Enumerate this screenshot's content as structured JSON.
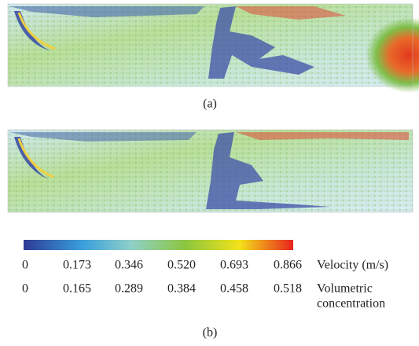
{
  "figure": {
    "panels": [
      {
        "caption": "(a)"
      },
      {
        "caption": "(b)"
      }
    ],
    "colorbar": {
      "rows": [
        {
          "ticks": [
            "0",
            "0.173",
            "0.346",
            "0.520",
            "0.693",
            "0.866"
          ],
          "label": [
            "Velocity (m/s)"
          ]
        },
        {
          "ticks": [
            "0",
            "0.165",
            "0.289",
            "0.384",
            "0.458",
            "0.518"
          ],
          "label": [
            "Volumetric",
            "concentration"
          ]
        }
      ]
    }
  }
}
